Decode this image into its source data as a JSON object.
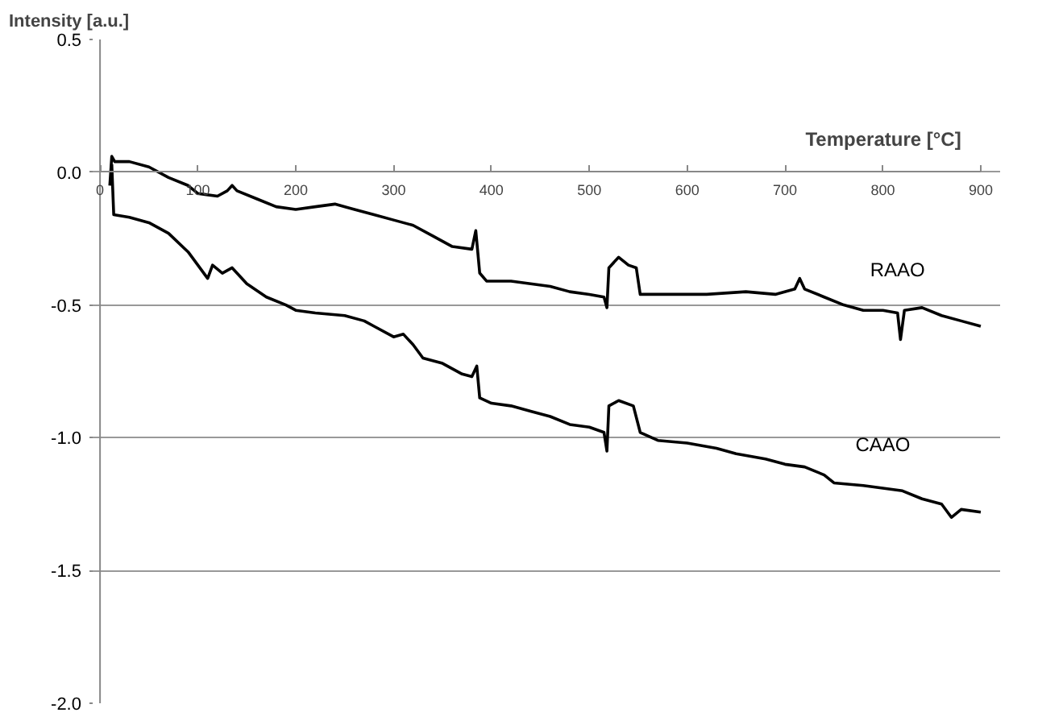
{
  "chart_data": {
    "type": "line",
    "xlabel": "Temperature [°C]",
    "ylabel": "Intensity [a.u.]",
    "xlim": [
      0,
      900
    ],
    "xticks": [
      0,
      100,
      200,
      300,
      400,
      500,
      600,
      700,
      800,
      900
    ],
    "ylim": [
      -2.0,
      0.5
    ],
    "yticks": [
      {
        "value": 0.5,
        "label": "0.5"
      },
      {
        "value": 0,
        "label": "0.0"
      },
      {
        "value": -0.5,
        "label": "-0.5"
      },
      {
        "value": -1.0,
        "label": "-1.0"
      },
      {
        "value": -1.5,
        "label": "-1.5"
      },
      {
        "value": -2.0,
        "label": "-2.0"
      }
    ],
    "grid": "y",
    "legend": false,
    "line_style": "solid",
    "series": [
      {
        "name": "RAAO",
        "color": "#000000",
        "x": [
          10,
          12,
          15,
          30,
          50,
          70,
          90,
          100,
          120,
          130,
          135,
          140,
          160,
          180,
          200,
          220,
          240,
          260,
          280,
          300,
          320,
          340,
          360,
          380,
          384,
          388,
          395,
          420,
          440,
          460,
          480,
          500,
          515,
          518,
          520,
          530,
          540,
          548,
          552,
          580,
          620,
          660,
          690,
          710,
          715,
          720,
          740,
          760,
          780,
          800,
          815,
          818,
          822,
          840,
          860,
          880,
          900
        ],
        "values": [
          -0.05,
          0.06,
          0.04,
          0.04,
          0.02,
          -0.02,
          -0.05,
          -0.08,
          -0.09,
          -0.07,
          -0.05,
          -0.07,
          -0.1,
          -0.13,
          -0.14,
          -0.13,
          -0.12,
          -0.14,
          -0.16,
          -0.18,
          -0.2,
          -0.24,
          -0.28,
          -0.29,
          -0.22,
          -0.38,
          -0.41,
          -0.41,
          -0.42,
          -0.43,
          -0.45,
          -0.46,
          -0.47,
          -0.51,
          -0.36,
          -0.32,
          -0.35,
          -0.36,
          -0.46,
          -0.46,
          -0.46,
          -0.45,
          -0.46,
          -0.44,
          -0.4,
          -0.44,
          -0.47,
          -0.5,
          -0.52,
          -0.52,
          -0.53,
          -0.63,
          -0.52,
          -0.51,
          -0.54,
          -0.56,
          -0.58
        ]
      },
      {
        "name": "CAAO",
        "color": "#000000",
        "x": [
          12,
          14,
          30,
          50,
          70,
          90,
          100,
          110,
          115,
          125,
          135,
          150,
          170,
          190,
          200,
          220,
          250,
          270,
          280,
          300,
          310,
          320,
          330,
          350,
          370,
          380,
          385,
          388,
          400,
          420,
          440,
          460,
          480,
          500,
          515,
          518,
          520,
          530,
          545,
          552,
          570,
          600,
          630,
          650,
          680,
          700,
          720,
          740,
          750,
          780,
          800,
          820,
          840,
          860,
          870,
          880,
          900
        ],
        "values": [
          0.03,
          -0.16,
          -0.17,
          -0.19,
          -0.23,
          -0.3,
          -0.35,
          -0.4,
          -0.35,
          -0.38,
          -0.36,
          -0.42,
          -0.47,
          -0.5,
          -0.52,
          -0.53,
          -0.54,
          -0.56,
          -0.58,
          -0.62,
          -0.61,
          -0.65,
          -0.7,
          -0.72,
          -0.76,
          -0.77,
          -0.73,
          -0.85,
          -0.87,
          -0.88,
          -0.9,
          -0.92,
          -0.95,
          -0.96,
          -0.98,
          -1.05,
          -0.88,
          -0.86,
          -0.88,
          -0.98,
          -1.01,
          -1.02,
          -1.04,
          -1.06,
          -1.08,
          -1.1,
          -1.11,
          -1.14,
          -1.17,
          -1.18,
          -1.19,
          -1.2,
          -1.23,
          -1.25,
          -1.3,
          -1.27,
          -1.28
        ]
      }
    ]
  }
}
